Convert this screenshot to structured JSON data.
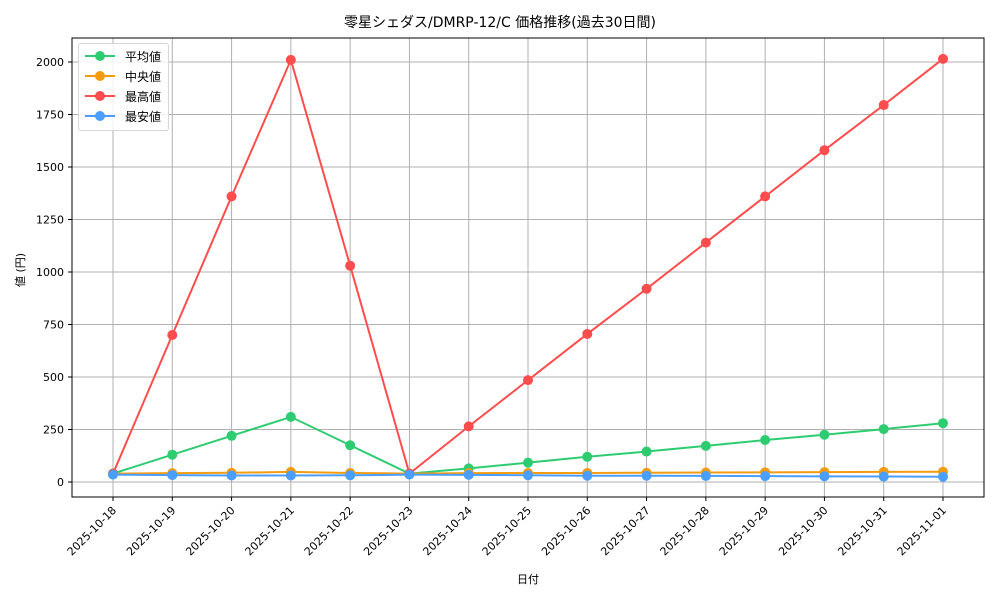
{
  "chart_data": {
    "type": "line",
    "title": "零星シェダス/DMRP-12/C 価格推移(過去30日間)",
    "xlabel": "日付",
    "ylabel": "値 (円)",
    "categories": [
      "2025-10-18",
      "2025-10-19",
      "2025-10-20",
      "2025-10-21",
      "2025-10-22",
      "2025-10-23",
      "2025-10-24",
      "2025-10-25",
      "2025-10-26",
      "2025-10-27",
      "2025-10-28",
      "2025-10-29",
      "2025-10-30",
      "2025-10-31",
      "2025-11-01"
    ],
    "series": [
      {
        "name": "平均値",
        "color": "#2ecc71",
        "values": [
          40,
          130,
          220,
          310,
          175,
          40,
          65,
          92,
          120,
          145,
          172,
          200,
          225,
          252,
          280
        ]
      },
      {
        "name": "中央値",
        "color": "#f39c12",
        "values": [
          40,
          42,
          44,
          48,
          43,
          40,
          42,
          43,
          43,
          44,
          45,
          46,
          47,
          48,
          49
        ]
      },
      {
        "name": "最高値",
        "color": "#ff4d4d",
        "values": [
          40,
          700,
          1360,
          2010,
          1030,
          40,
          265,
          485,
          705,
          920,
          1140,
          1360,
          1580,
          1795,
          2015
        ]
      },
      {
        "name": "最安値",
        "color": "#4a9eff",
        "values": [
          35,
          33,
          31,
          31,
          32,
          35,
          34,
          32,
          30,
          30,
          29,
          28,
          27,
          26,
          25
        ]
      }
    ],
    "yticks": [
      0,
      250,
      500,
      750,
      1000,
      1250,
      1500,
      1750,
      2000
    ],
    "ylim": [
      -70,
      2110
    ],
    "grid": true,
    "legend_position": "upper left"
  }
}
